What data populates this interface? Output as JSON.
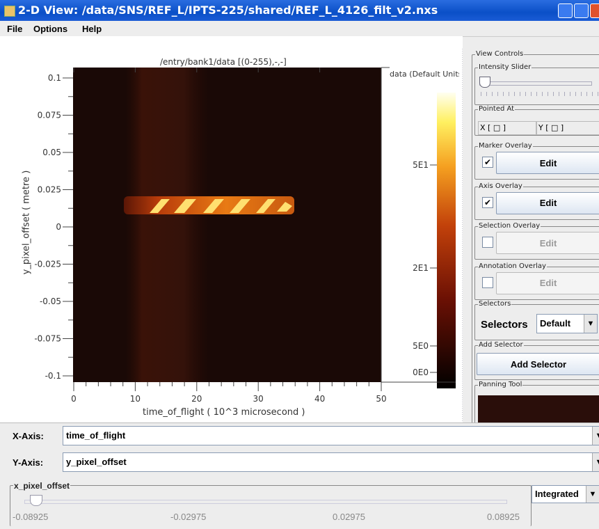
{
  "window": {
    "title": "2-D View: /data/SNS/REF_L/IPTS-225/shared/REF_L_4126_filt_v2.nxs"
  },
  "menu": [
    "File",
    "Options",
    "Help"
  ],
  "plot": {
    "title": "/entry/bank1/data [(0-255),-,-]",
    "colorbar_title": "data (Default Units",
    "x_label": "time_of_flight  ( 10^3 microsecond )",
    "y_label": "y_pixel_offset  ( metre )",
    "x_ticks": [
      "0",
      "10",
      "20",
      "30",
      "40",
      "50"
    ],
    "y_ticks": [
      "0.1",
      "0.075",
      "0.05",
      "0.025",
      "0",
      "-0.025",
      "-0.05",
      "-0.075",
      "-0.1"
    ],
    "colorbar_ticks": [
      "5E1",
      "2E1",
      "5E0",
      "0E0"
    ]
  },
  "panel": {
    "view_controls": "View Controls",
    "intensity_slider": "Intensity Slider",
    "pointed_at": "Pointed At",
    "x_readout": "X [ □ ]",
    "y_readout": "Y [ □ ]",
    "overlays": [
      {
        "title": "Marker Overlay",
        "button": "Edit"
      },
      {
        "title": "Axis Overlay",
        "button": "Edit"
      },
      {
        "title": "Selection Overlay",
        "button": "Edit"
      },
      {
        "title": "Annotation Overlay",
        "button": "Edit"
      }
    ],
    "selectors_group": "Selectors",
    "selectors_label": "Selectors",
    "selectors_value": "Default",
    "add_selector_group": "Add Selector",
    "add_selector_button": "Add Selector",
    "panning_tool": "Panning Tool"
  },
  "bottom": {
    "x_axis_label": "X-Axis:",
    "x_axis_value": "time_of_flight",
    "y_axis_label": "Y-Axis:",
    "y_axis_value": "y_pixel_offset",
    "slice_group": "x_pixel_offset",
    "slice_ticks": [
      "-0.08925",
      "-0.02975",
      "0.02975",
      "0.08925"
    ],
    "mode": "Integrated"
  }
}
